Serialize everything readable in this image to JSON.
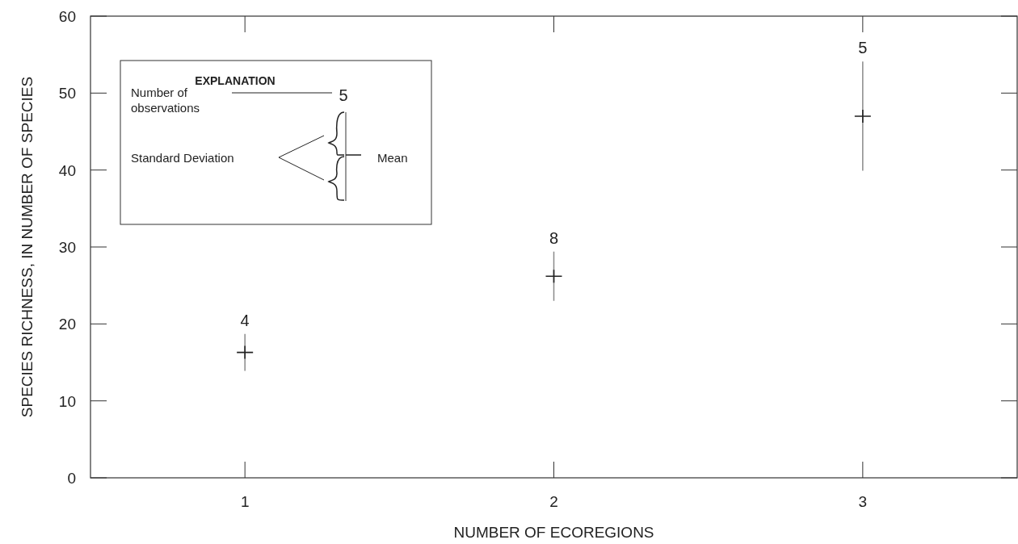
{
  "chart_data": {
    "type": "scatter",
    "xlabel": "NUMBER OF ECOREGIONS",
    "ylabel": "SPECIES RICHNESS, IN NUMBER OF SPECIES",
    "x": [
      1,
      2,
      3
    ],
    "series": [
      {
        "color": "#222222",
        "values": [
          16.3,
          26.2,
          47.0
        ],
        "errors": [
          2.4,
          3.2,
          7.1
        ]
      }
    ],
    "xlim": [
      0.5,
      3.5
    ],
    "xticks": [
      1,
      2,
      3
    ],
    "ylim": [
      0,
      60
    ],
    "yticks": [
      0,
      10,
      20,
      30,
      40,
      50,
      60
    ],
    "grid": false,
    "marker": "cross",
    "annotations": [
      "EXPLANATION",
      "Number of",
      "observations",
      "5",
      "Standard Deviation",
      "Mean",
      {
        "text": "4",
        "x": 1,
        "y": 18.7
      },
      {
        "text": "8",
        "x": 2,
        "y": 29.4
      },
      {
        "text": "5",
        "x": 3,
        "y": 54.1
      }
    ]
  }
}
